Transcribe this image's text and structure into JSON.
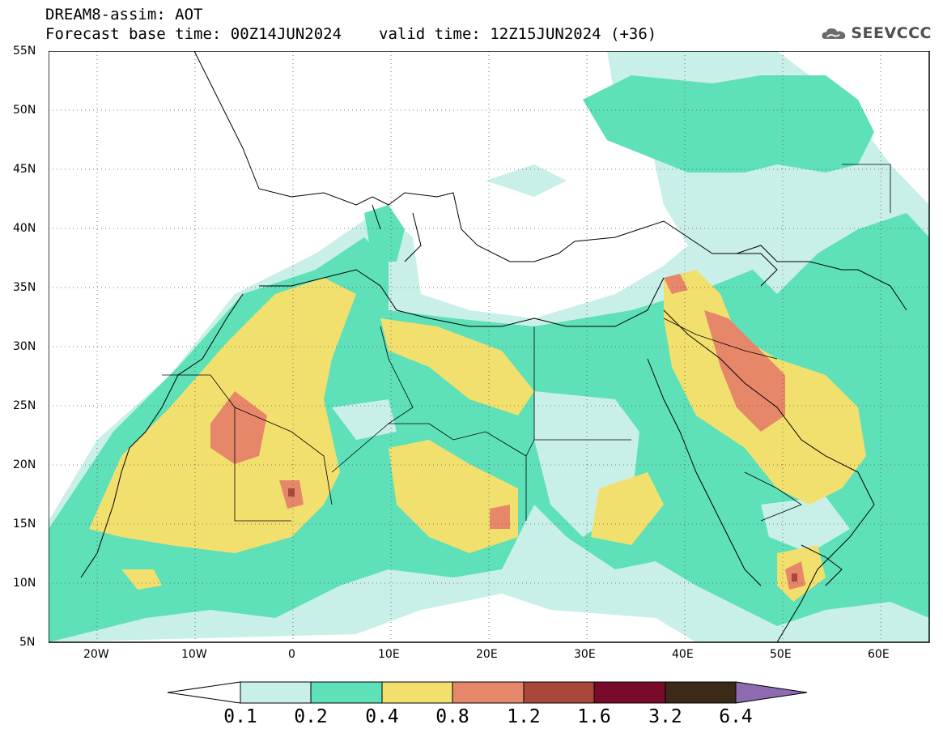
{
  "title": {
    "line1": "DREAM8-assim: AOT",
    "base_time": "Forecast base time: 00Z14JUN2024",
    "valid_time": "valid time: 12Z15JUN2024 (+36)"
  },
  "logo": {
    "text": "SEEVCCC",
    "icon": "cloud-icon"
  },
  "map": {
    "projection": "lat-lon",
    "lon_range": [
      -25,
      65
    ],
    "lat_range": [
      5,
      55
    ],
    "lat_ticks": [
      "55N",
      "50N",
      "45N",
      "40N",
      "35N",
      "30N",
      "25N",
      "20N",
      "15N",
      "10N",
      "5N"
    ],
    "lon_ticks": [
      "20W",
      "10W",
      "0",
      "10E",
      "20E",
      "30E",
      "40E",
      "50E",
      "60E"
    ],
    "grid": "dotted"
  },
  "colorbar": {
    "labels": [
      "0.1",
      "0.2",
      "0.4",
      "0.8",
      "1.2",
      "1.6",
      "3.2",
      "6.4"
    ],
    "colors": {
      "under": "#ffffff",
      "c1": "#c9f0e8",
      "c2": "#5ee0b8",
      "c3": "#f2e06e",
      "c4": "#e6876a",
      "c5": "#a9483a",
      "c6": "#7a0a2a",
      "c7": "#3b2a18",
      "over": "#8e6bb0"
    }
  }
}
